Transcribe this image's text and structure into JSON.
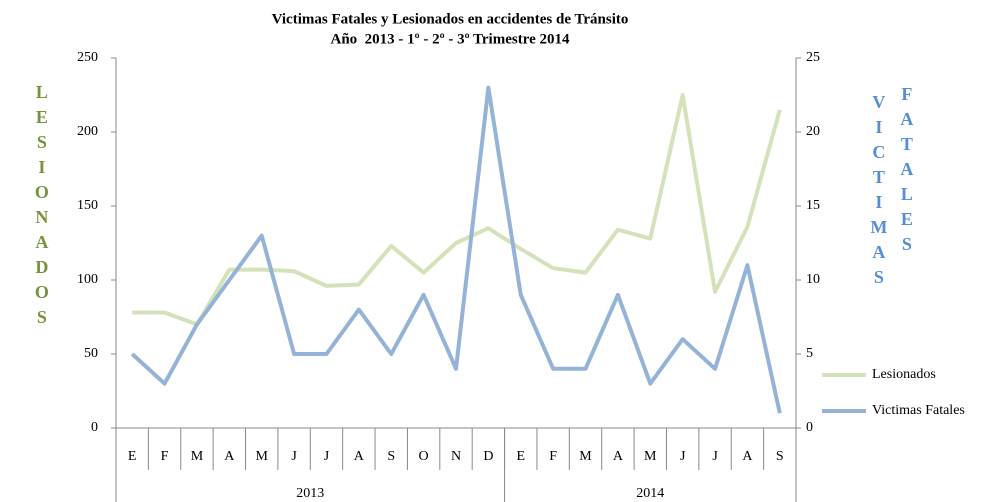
{
  "chart_data": {
    "type": "line",
    "title": "Victimas Fatales y Lesionados en accidentes de Tránsito",
    "subtitle": "Año  2013 - 1º - 2º - 3º Trimestre 2014",
    "ylabel": "LESIONADOS",
    "y2label": [
      "VICTIMAS",
      "FATALES"
    ],
    "groups": [
      {
        "label": "2013",
        "categories": [
          "E",
          "F",
          "M",
          "A",
          "M",
          "J",
          "J",
          "A",
          "S",
          "O",
          "N",
          "D"
        ]
      },
      {
        "label": "2014",
        "categories": [
          "E",
          "F",
          "M",
          "A",
          "M",
          "J",
          "J",
          "A",
          "S"
        ]
      }
    ],
    "series": [
      {
        "name": "Lesionados",
        "color": "#d4e2b9",
        "axis": "y",
        "values": [
          78,
          78,
          70,
          107,
          107,
          106,
          96,
          97,
          123,
          105,
          125,
          135,
          121,
          108,
          105,
          134,
          128,
          225,
          92,
          136,
          215
        ]
      },
      {
        "name": "Victimas Fatales",
        "color": "#95b3d7",
        "axis": "y2",
        "values": [
          5,
          3,
          7,
          10,
          13,
          5,
          5,
          8,
          5,
          9,
          4,
          23,
          9,
          4,
          4,
          9,
          3,
          6,
          4,
          11,
          1
        ]
      }
    ],
    "ylim": [
      0,
      250
    ],
    "yticks": [
      0,
      50,
      100,
      150,
      200,
      250
    ],
    "y2lim": [
      0,
      25
    ],
    "y2ticks": [
      0,
      5,
      10,
      15,
      20,
      25
    ],
    "ylabel_color": "#77933c",
    "y2label_color": "#558ed5",
    "legend": "right"
  }
}
